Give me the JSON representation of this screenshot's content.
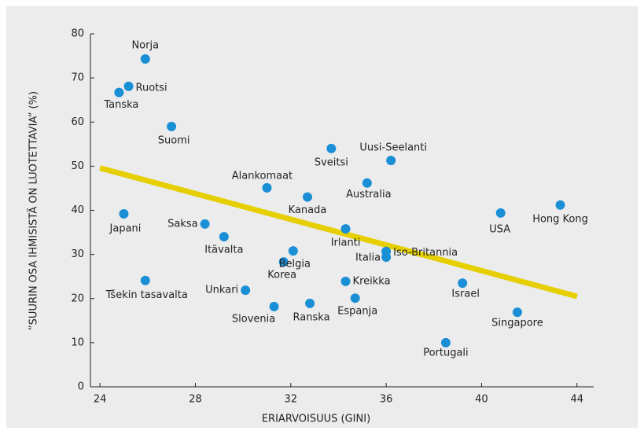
{
  "chart_data": {
    "type": "scatter",
    "xlabel": "ERIARVOISUUS (GINI)",
    "ylabel": "”SUURIN OSA IHMISISTÄ ON LUOTETTAVIA” (%)",
    "xlim": [
      23.6,
      44.7
    ],
    "ylim": [
      0,
      80
    ],
    "xticks": [
      24,
      28,
      32,
      36,
      40,
      44
    ],
    "yticks": [
      0,
      10,
      20,
      30,
      40,
      50,
      60,
      70,
      80
    ],
    "color": "#1b8fd6",
    "labels": [
      "Norja",
      "Ruotsi",
      "Tanska",
      "Suomi",
      "Japani",
      "Saksa",
      "Itävalta",
      "Tšekin tasavalta",
      "Unkari",
      "Slovenia",
      "Korea",
      "Belgia",
      "Alankomaat",
      "Kanada",
      "Ranska",
      "Sveitsi",
      "Uusi-Seelanti",
      "Australia",
      "Irlanti",
      "Kreikka",
      "Espanja",
      "Iso-Britannia",
      "Italia",
      "Portugali",
      "Israel",
      "USA",
      "Hong Kong",
      "Singapore"
    ],
    "x": [
      25.9,
      25.2,
      24.8,
      27.0,
      25.0,
      28.4,
      29.2,
      25.9,
      30.1,
      31.3,
      31.7,
      32.1,
      31.0,
      32.7,
      32.8,
      33.7,
      36.2,
      35.2,
      34.3,
      34.3,
      34.7,
      36.0,
      36.0,
      38.5,
      39.2,
      40.8,
      43.3,
      41.5
    ],
    "y": [
      74.3,
      68.1,
      66.7,
      59.0,
      39.2,
      36.9,
      34.0,
      24.1,
      21.9,
      18.2,
      28.3,
      30.8,
      45.1,
      43.0,
      18.9,
      54.0,
      51.3,
      46.2,
      35.8,
      23.9,
      20.1,
      30.7,
      29.4,
      10.0,
      23.5,
      39.4,
      41.2,
      16.9
    ],
    "trendline": {
      "color": "#e6cf00",
      "x": [
        24,
        44
      ],
      "y": [
        49.6,
        20.5
      ]
    }
  }
}
